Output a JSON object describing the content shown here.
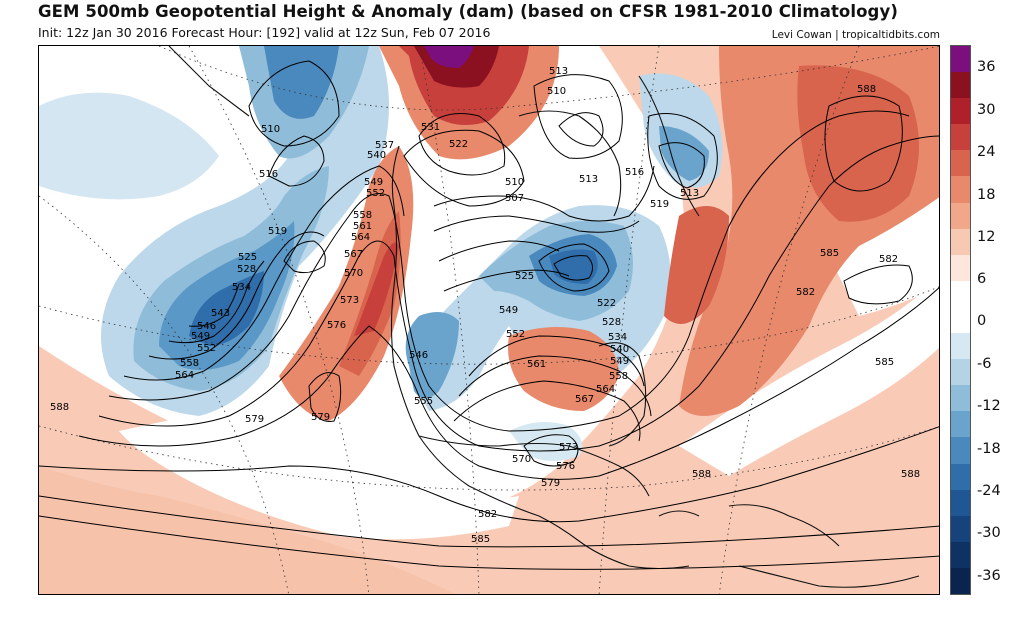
{
  "header": {
    "title": "GEM 500mb Geopotential Height & Anomaly (dam) (based on CFSR 1981-2010 Climatology)",
    "subtitle": "Init: 12z Jan 30 2016   Forecast Hour: [192]   valid at 12z Sun, Feb 07 2016",
    "credit": "Levi Cowan | tropicaltidbits.com"
  },
  "colorbar": {
    "ticks": [
      "36",
      "30",
      "24",
      "18",
      "12",
      "6",
      "0",
      "-6",
      "-12",
      "-18",
      "-24",
      "-30",
      "-36"
    ],
    "colors": [
      "#7b0f7e",
      "#8b1020",
      "#b0202a",
      "#c8403c",
      "#d8644e",
      "#e8896c",
      "#f1a88a",
      "#f7c8b2",
      "#fde6dc",
      "#ffffff",
      "#ffffff",
      "#d6e8f2",
      "#b4d4e6",
      "#8fbdd9",
      "#6aa4cc",
      "#4a89be",
      "#2f6eaa",
      "#1f5694",
      "#16437c",
      "#0f3264",
      "#0a2450"
    ]
  },
  "contour_labels": [
    {
      "text": "513"
    },
    {
      "text": "510"
    },
    {
      "text": "531"
    },
    {
      "text": "522"
    },
    {
      "text": "537"
    },
    {
      "text": "540"
    },
    {
      "text": "510"
    },
    {
      "text": "516"
    },
    {
      "text": "519"
    },
    {
      "text": "549"
    },
    {
      "text": "552"
    },
    {
      "text": "558"
    },
    {
      "text": "561"
    },
    {
      "text": "564"
    },
    {
      "text": "567"
    },
    {
      "text": "570"
    },
    {
      "text": "573"
    },
    {
      "text": "576"
    },
    {
      "text": "525"
    },
    {
      "text": "528"
    },
    {
      "text": "534"
    },
    {
      "text": "543"
    },
    {
      "text": "546"
    },
    {
      "text": "549"
    },
    {
      "text": "552"
    },
    {
      "text": "558"
    },
    {
      "text": "564"
    },
    {
      "text": "579"
    },
    {
      "text": "579"
    },
    {
      "text": "588"
    },
    {
      "text": "510"
    },
    {
      "text": "507"
    },
    {
      "text": "513"
    },
    {
      "text": "516"
    },
    {
      "text": "513"
    },
    {
      "text": "519"
    },
    {
      "text": "525"
    },
    {
      "text": "549"
    },
    {
      "text": "552"
    },
    {
      "text": "522"
    },
    {
      "text": "528"
    },
    {
      "text": "534"
    },
    {
      "text": "540"
    },
    {
      "text": "546"
    },
    {
      "text": "549"
    },
    {
      "text": "555"
    },
    {
      "text": "561"
    },
    {
      "text": "558"
    },
    {
      "text": "564"
    },
    {
      "text": "567"
    },
    {
      "text": "570"
    },
    {
      "text": "573"
    },
    {
      "text": "576"
    },
    {
      "text": "579"
    },
    {
      "text": "582"
    },
    {
      "text": "585"
    },
    {
      "text": "588"
    },
    {
      "text": "588"
    },
    {
      "text": "585"
    },
    {
      "text": "582"
    },
    {
      "text": "582"
    },
    {
      "text": "585"
    },
    {
      "text": "588"
    }
  ]
}
